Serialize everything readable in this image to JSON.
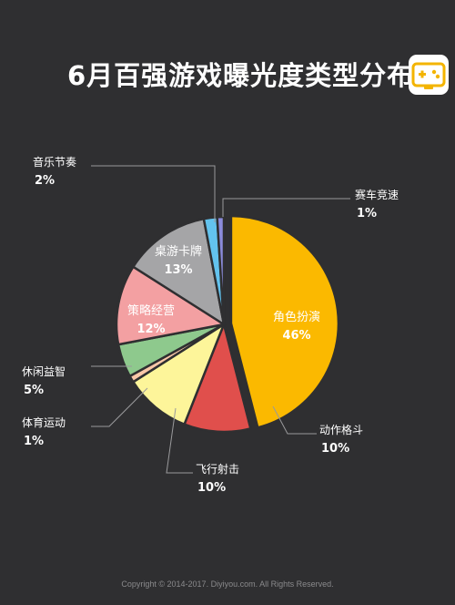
{
  "title": "6月百强游戏曝光度类型分布",
  "footer": "Copyright © 2014-2017. Diyiyou.com. All Rights Reserved.",
  "logo_icon": "gamepad-icon",
  "colors": {
    "background": "#2f2f31",
    "leader": "#9a9a9c",
    "label": "#ffffff",
    "logo_bg": "#ffffff",
    "logo_accent": "#f3b400"
  },
  "chart_data": {
    "type": "pie",
    "title": "6月百强游戏曝光度类型分布",
    "unit": "%",
    "slices": [
      {
        "name": "角色扮演",
        "value": 46,
        "label": "46%",
        "color": "#fbb900"
      },
      {
        "name": "动作格斗",
        "value": 10,
        "label": "10%",
        "color": "#e04f4c"
      },
      {
        "name": "飞行射击",
        "value": 10,
        "label": "10%",
        "color": "#fdf59a"
      },
      {
        "name": "体育运动",
        "value": 1,
        "label": "1%",
        "color": "#f9c7a8"
      },
      {
        "name": "休闲益智",
        "value": 5,
        "label": "5%",
        "color": "#8ec98d"
      },
      {
        "name": "策略经营",
        "value": 12,
        "label": "12%",
        "color": "#f3a0a2"
      },
      {
        "name": "桌游卡牌",
        "value": 13,
        "label": "13%",
        "color": "#a5a5a7"
      },
      {
        "name": "音乐节奏",
        "value": 2,
        "label": "2%",
        "color": "#63c3ee"
      },
      {
        "name": "赛车竞速",
        "value": 1,
        "label": "1%",
        "color": "#8b8bdc"
      }
    ]
  }
}
